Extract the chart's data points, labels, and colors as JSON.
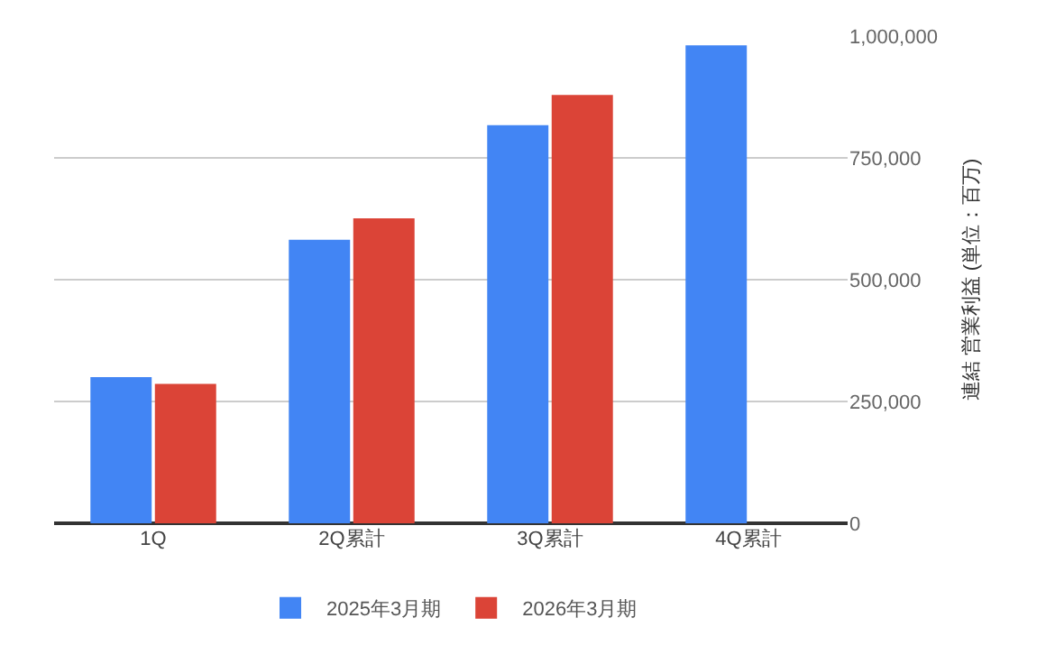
{
  "chart_data": {
    "type": "bar",
    "ylabel": "連結 営業利益 (単位：百万)",
    "categories": [
      "1Q",
      "2Q累計",
      "3Q累計",
      "4Q累計"
    ],
    "series": [
      {
        "name": "2025年3月期",
        "color": "#4285f4",
        "values": [
          300000,
          582000,
          817000,
          981000
        ]
      },
      {
        "name": "2026年3月期",
        "color": "#db4437",
        "values": [
          286000,
          626000,
          879000,
          null
        ]
      }
    ],
    "ylim": [
      0,
      1000000
    ],
    "yticks": [
      {
        "value": 0,
        "label": "0"
      },
      {
        "value": 250000,
        "label": "250,000"
      },
      {
        "value": 500000,
        "label": "500,000"
      },
      {
        "value": 750000,
        "label": "750,000"
      },
      {
        "value": 1000000,
        "label": "1,000,000"
      }
    ],
    "grid": "y",
    "legend": "bottom"
  }
}
